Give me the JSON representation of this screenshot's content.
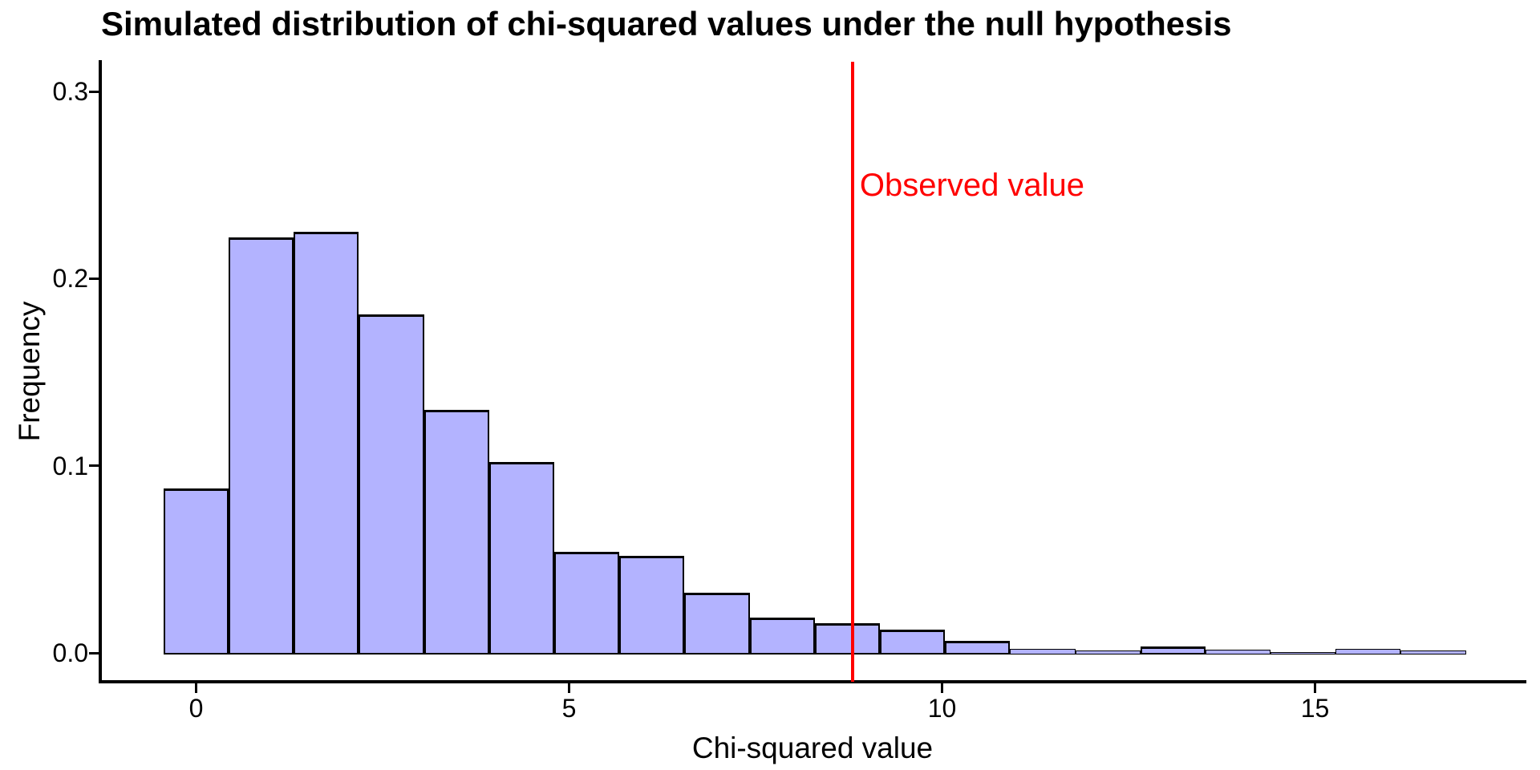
{
  "title": "Simulated distribution of chi-squared values under the null hypothesis",
  "x_axis": {
    "label": "Chi-squared value",
    "ticks": [
      {
        "value": 0,
        "label": "0"
      },
      {
        "value": 5,
        "label": "5"
      },
      {
        "value": 10,
        "label": "10"
      },
      {
        "value": 15,
        "label": "15"
      }
    ]
  },
  "y_axis": {
    "label": "Frequency",
    "ticks": [
      {
        "value": 0.0,
        "label": "0.0"
      },
      {
        "value": 0.1,
        "label": "0.1"
      },
      {
        "value": 0.2,
        "label": "0.2"
      },
      {
        "value": 0.3,
        "label": "0.3"
      }
    ]
  },
  "annotation": {
    "label": "Observed value",
    "x": 8.8
  },
  "colors": {
    "bar_fill": "#B3B3FF",
    "bar_stroke": "#000000",
    "observed_line": "#FF0000",
    "axis": "#000000",
    "text": "#000000",
    "background": "#FFFFFF"
  },
  "chart_data": {
    "type": "bar",
    "subtype": "histogram",
    "title": "Simulated distribution of chi-squared values under the null hypothesis",
    "xlabel": "Chi-squared value",
    "ylabel": "Frequency",
    "xlim": [
      -1.3,
      17.7
    ],
    "ylim": [
      0,
      0.316
    ],
    "grid": false,
    "legend": "none",
    "x_ticks": [
      0,
      5,
      10,
      15
    ],
    "y_ticks": [
      0.0,
      0.1,
      0.2,
      0.3
    ],
    "bin_start": -0.437,
    "bin_width": 0.873,
    "densities": [
      0.088,
      0.222,
      0.225,
      0.181,
      0.13,
      0.102,
      0.054,
      0.052,
      0.032,
      0.019,
      0.016,
      0.0123,
      0.0064,
      0.0023,
      0.0013,
      0.0034,
      0.0019,
      0.0004,
      0.0021,
      0.0013
    ],
    "annotations": [
      {
        "type": "vline",
        "x": 8.8,
        "color": "#FF0000",
        "label": "Observed value"
      }
    ]
  }
}
